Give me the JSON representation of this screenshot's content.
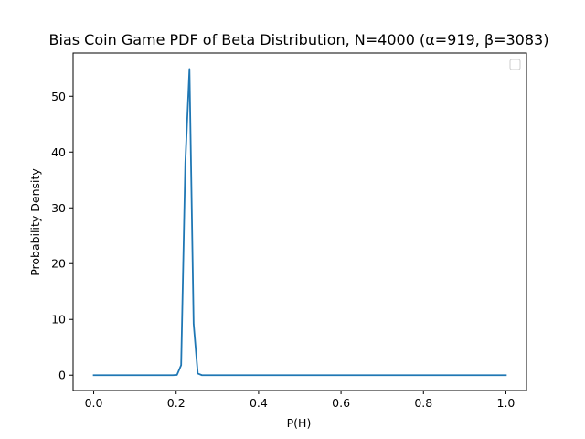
{
  "chart_data": {
    "type": "line",
    "title": "Bias Coin Game PDF of Beta Distribution, N=4000 (α=919, β=3083)",
    "xlabel": "P(H)",
    "ylabel": "Probability Density",
    "xlim": [
      -0.05,
      1.05
    ],
    "ylim": [
      -2.75,
      57.75
    ],
    "xticks": [
      0.0,
      0.2,
      0.4,
      0.6,
      0.8,
      1.0
    ],
    "xtick_labels": [
      "0.0",
      "0.2",
      "0.4",
      "0.6",
      "0.8",
      "1.0"
    ],
    "yticks": [
      0,
      10,
      20,
      30,
      40,
      50
    ],
    "ytick_labels": [
      "0",
      "10",
      "20",
      "30",
      "40",
      "50"
    ],
    "grid": false,
    "legend": {
      "placement": "top-right",
      "entries": []
    },
    "series": [
      {
        "color": "#1f77b4",
        "x": [
          0.0,
          0.0101,
          0.0202,
          0.0303,
          0.0404,
          0.0505,
          0.0606,
          0.0707,
          0.0808,
          0.0909,
          0.101,
          0.1111,
          0.1212,
          0.1313,
          0.1414,
          0.1515,
          0.1616,
          0.1717,
          0.1818,
          0.1919,
          0.202,
          0.2121,
          0.2222,
          0.2323,
          0.2424,
          0.2525,
          0.2626,
          0.2727,
          0.2828,
          0.2929,
          0.303,
          0.3131,
          0.3232,
          0.3333,
          0.3434,
          0.3535,
          0.3636,
          0.3737,
          0.3838,
          0.3939,
          0.404,
          0.4141,
          0.4242,
          0.4343,
          0.4444,
          0.4545,
          0.4646,
          0.4747,
          0.4848,
          0.4949,
          0.5051,
          0.5152,
          0.5253,
          0.5354,
          0.5455,
          0.5556,
          0.5657,
          0.5758,
          0.5859,
          0.596,
          0.6061,
          0.6162,
          0.6263,
          0.6364,
          0.6465,
          0.6566,
          0.6667,
          0.6768,
          0.6869,
          0.697,
          0.7071,
          0.7172,
          0.7273,
          0.7374,
          0.7475,
          0.7576,
          0.7677,
          0.7778,
          0.7879,
          0.798,
          0.8081,
          0.8182,
          0.8283,
          0.8384,
          0.8485,
          0.8586,
          0.8687,
          0.8788,
          0.8889,
          0.899,
          0.9091,
          0.9192,
          0.9293,
          0.9394,
          0.9495,
          0.9596,
          0.9697,
          0.9798,
          0.9899,
          1.0
        ],
        "y": [
          0,
          0,
          0,
          0,
          0,
          0,
          0,
          0,
          0,
          0,
          0,
          0,
          0,
          0,
          0,
          0,
          0,
          0,
          0,
          0,
          0.05,
          1.8,
          38.0,
          54.9,
          9.2,
          0.3,
          0,
          0,
          0,
          0,
          0,
          0,
          0,
          0,
          0,
          0,
          0,
          0,
          0,
          0,
          0,
          0,
          0,
          0,
          0,
          0,
          0,
          0,
          0,
          0,
          0,
          0,
          0,
          0,
          0,
          0,
          0,
          0,
          0,
          0,
          0,
          0,
          0,
          0,
          0,
          0,
          0,
          0,
          0,
          0,
          0,
          0,
          0,
          0,
          0,
          0,
          0,
          0,
          0,
          0,
          0,
          0,
          0,
          0,
          0,
          0,
          0,
          0,
          0,
          0,
          0,
          0,
          0,
          0,
          0,
          0,
          0,
          0,
          0,
          0
        ]
      }
    ]
  }
}
